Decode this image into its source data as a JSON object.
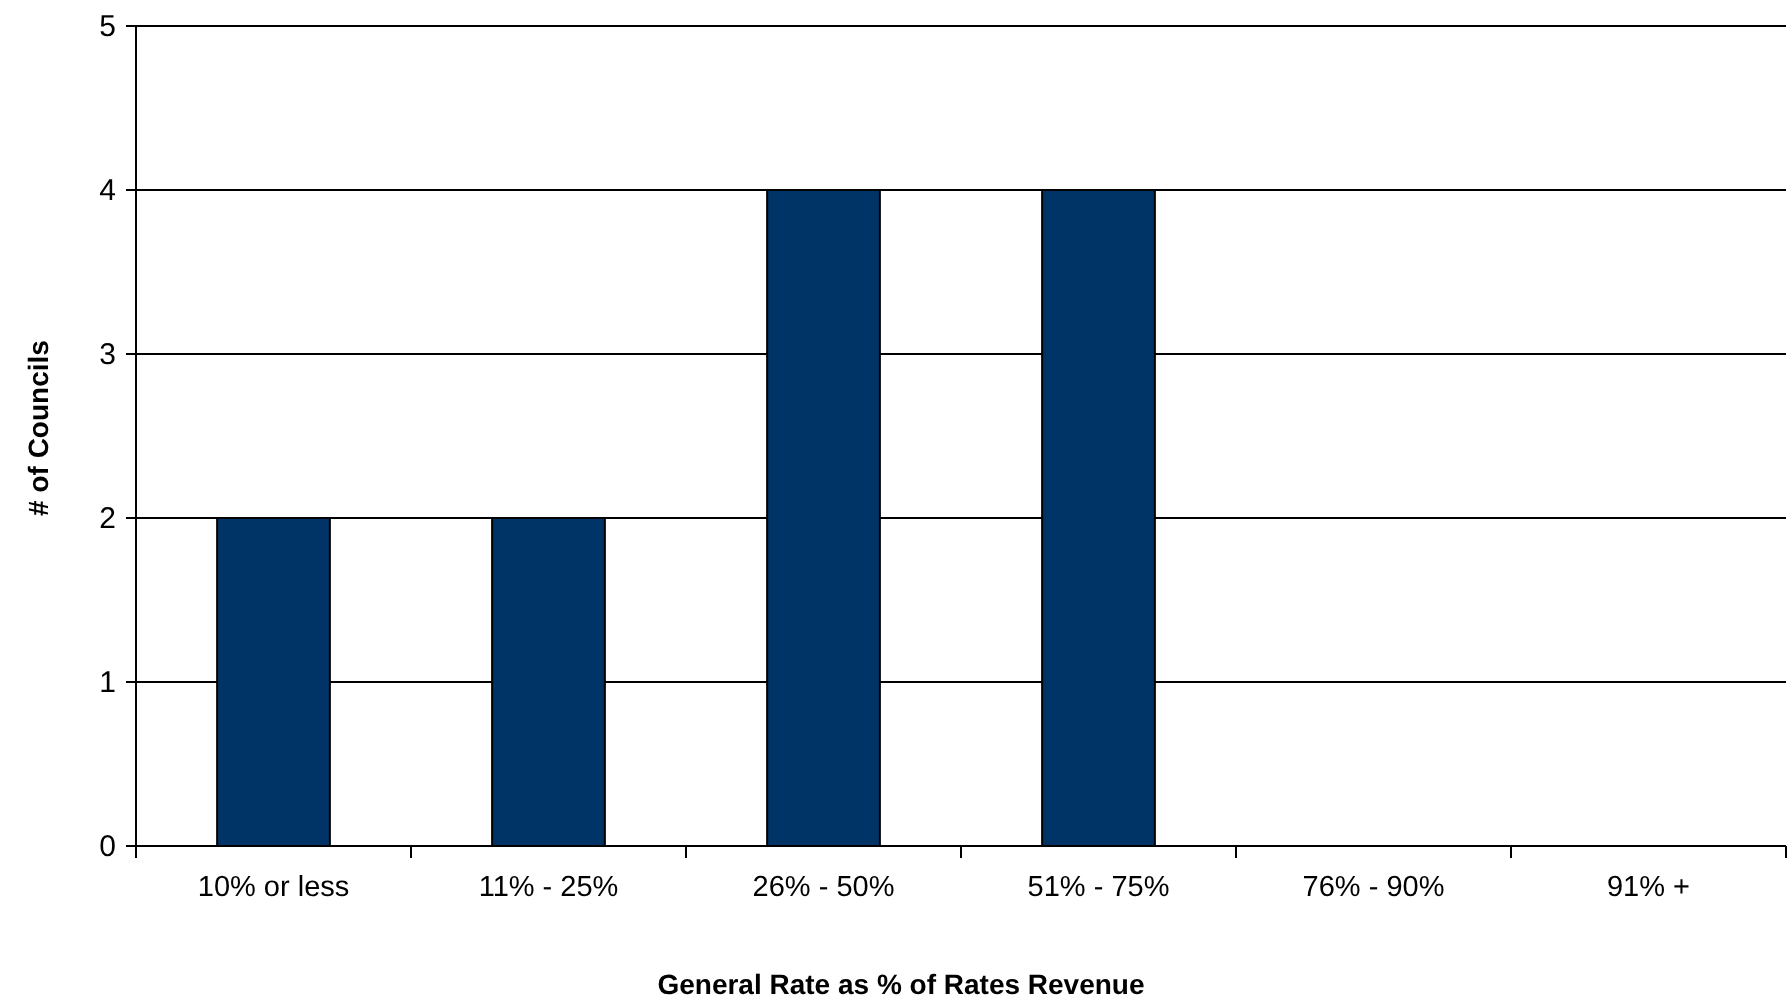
{
  "chart_data": {
    "type": "bar",
    "xlabel": "General Rate as % of Rates Revenue",
    "ylabel": "# of Councils",
    "categories": [
      "10% or less",
      "11% - 25%",
      "26% - 50%",
      "51% - 75%",
      "76% - 90%",
      "91% +"
    ],
    "values": [
      2,
      2,
      4,
      4,
      0,
      0
    ],
    "color": "#003366",
    "ylim": [
      0,
      5
    ],
    "yticks": [
      0,
      1,
      2,
      3,
      4,
      5
    ],
    "grid": "y"
  }
}
